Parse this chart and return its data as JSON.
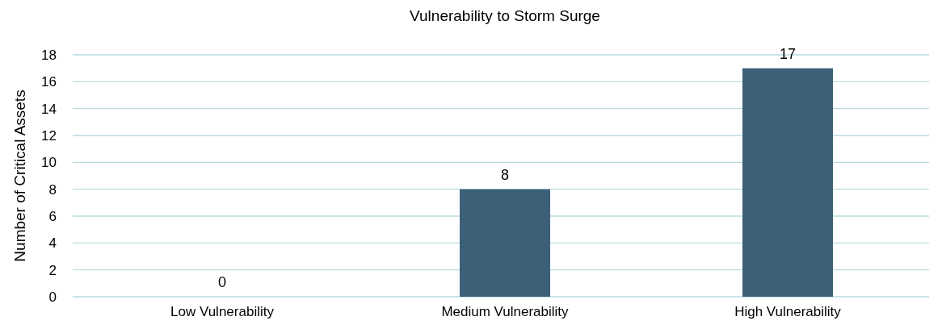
{
  "chart_data": {
    "type": "bar",
    "title": "Vulnerability to Storm Surge",
    "ylabel": "Number of Critical Assets",
    "categories": [
      "Low Vulnerability",
      "Medium Vulnerability",
      "High Vulnerability"
    ],
    "values": [
      0,
      8,
      17
    ],
    "color": "#3b6078",
    "ylim": [
      0,
      18
    ],
    "yticks": [
      0,
      2,
      4,
      6,
      8,
      10,
      12,
      14,
      16,
      18
    ],
    "grid": "y",
    "data_labels": true
  }
}
